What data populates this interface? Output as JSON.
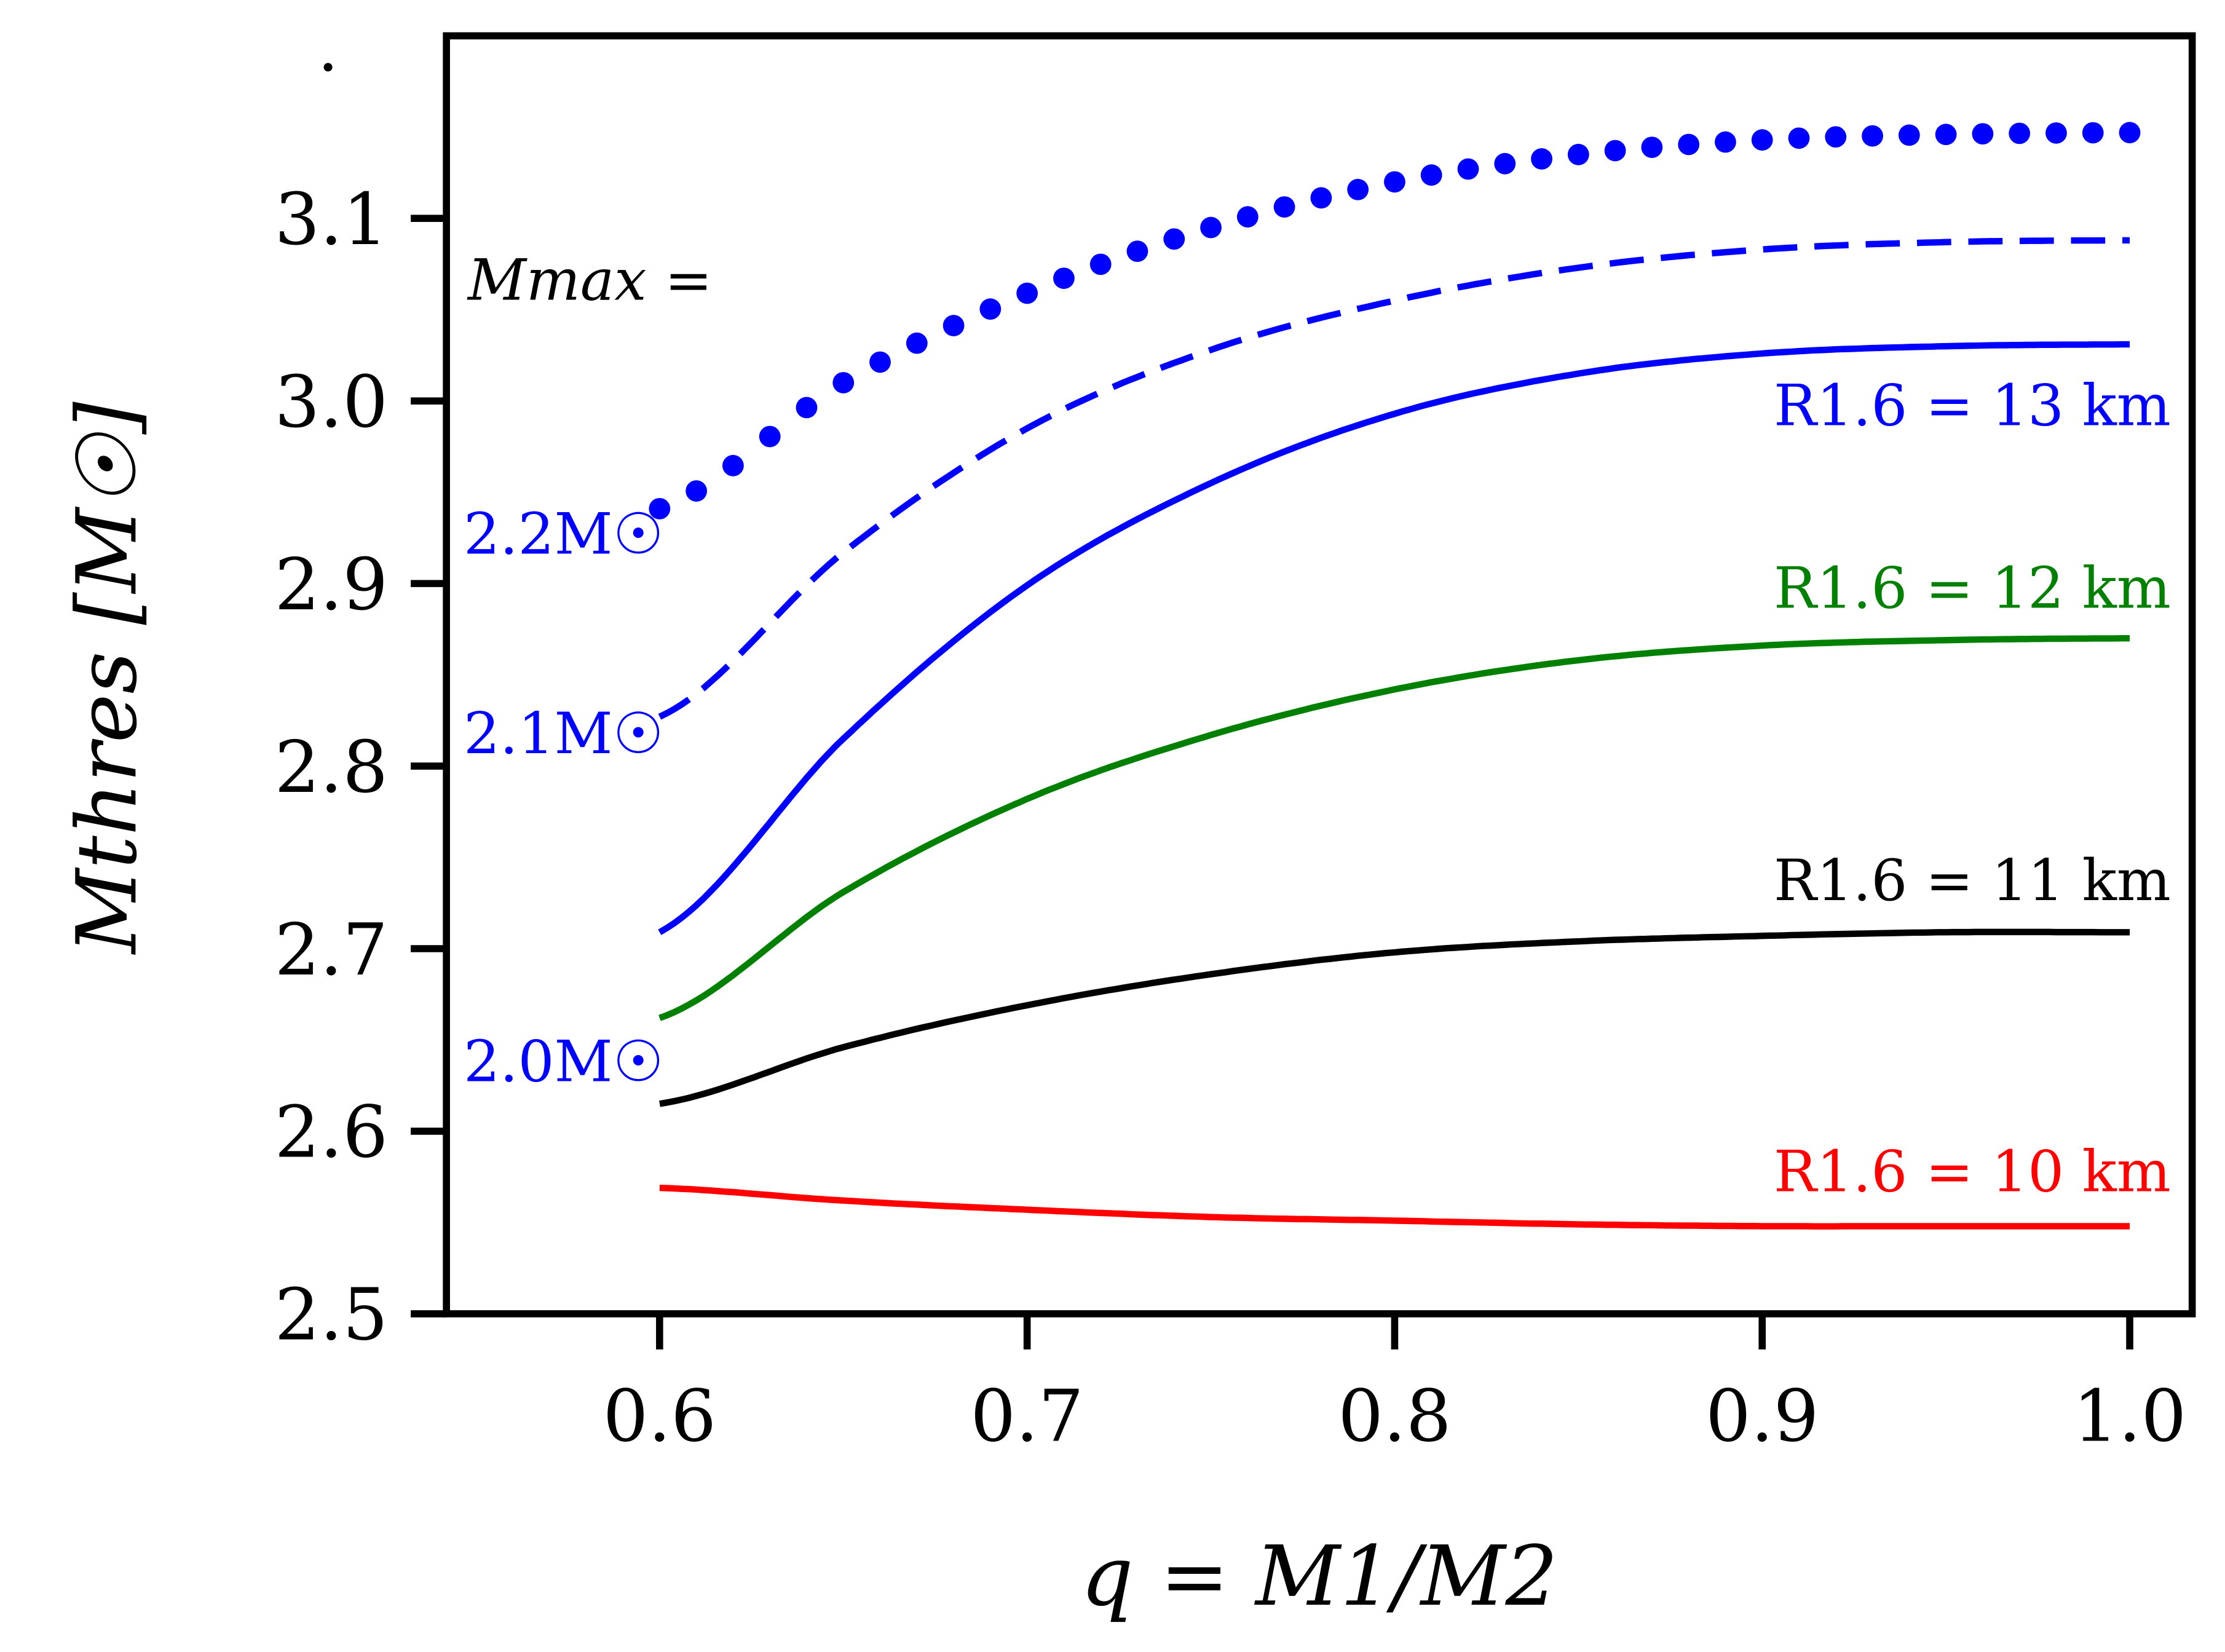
{
  "chart_data": {
    "type": "line",
    "xlabel": "q = M1/M2",
    "ylabel": "Mthres [M☉]",
    "xlim": [
      0.542,
      1.017
    ],
    "ylim": [
      2.5,
      3.2
    ],
    "xticks": [
      "0.6",
      "0.7",
      "0.8",
      "0.9",
      "1.0"
    ],
    "yticks": [
      "2.5",
      "2.6",
      "2.7",
      "2.8",
      "2.9",
      "3.0",
      "3.1"
    ],
    "grid": false,
    "x": [
      0.6,
      0.65,
      0.7,
      0.75,
      0.8,
      0.85,
      0.9,
      0.95,
      1.0
    ],
    "series": [
      {
        "name": "R1.6 = 10 km",
        "color": "#ff0000",
        "style": "solid",
        "values": [
          2.569,
          2.562,
          2.557,
          2.553,
          2.551,
          2.549,
          2.548,
          2.548,
          2.548
        ]
      },
      {
        "name": "R1.6 = 11 km",
        "color": "#000000",
        "style": "solid",
        "values": [
          2.615,
          2.646,
          2.669,
          2.686,
          2.698,
          2.704,
          2.707,
          2.709,
          2.709
        ]
      },
      {
        "name": "R1.6 = 12 km",
        "color": "#008000",
        "style": "solid",
        "values": [
          2.662,
          2.731,
          2.782,
          2.817,
          2.842,
          2.858,
          2.866,
          2.869,
          2.87
        ]
      },
      {
        "name": "R1.6 = 13 km",
        "color": "#0000ff",
        "style": "solid",
        "values": [
          2.709,
          2.815,
          2.899,
          2.955,
          2.993,
          3.015,
          3.026,
          3.03,
          3.031
        ]
      },
      {
        "name": "2.1M☉",
        "color": "#0000ff",
        "style": "dashed",
        "values": [
          2.827,
          2.917,
          2.985,
          3.028,
          3.055,
          3.073,
          3.083,
          3.087,
          3.088
        ]
      },
      {
        "name": "2.2M☉",
        "color": "#0000ff",
        "style": "dotted",
        "values": [
          2.941,
          3.01,
          3.059,
          3.095,
          3.12,
          3.135,
          3.143,
          3.146,
          3.147
        ]
      }
    ],
    "annotations": {
      "mmax": "Mmax =",
      "m22": "2.2M☉",
      "m21": "2.1M☉",
      "m20": "2.0M☉",
      "r13": "R1.6 = 13 km",
      "r12": "R1.6 = 12 km",
      "r11": "R1.6 = 11 km",
      "r10": "R1.6 = 10 km"
    }
  }
}
